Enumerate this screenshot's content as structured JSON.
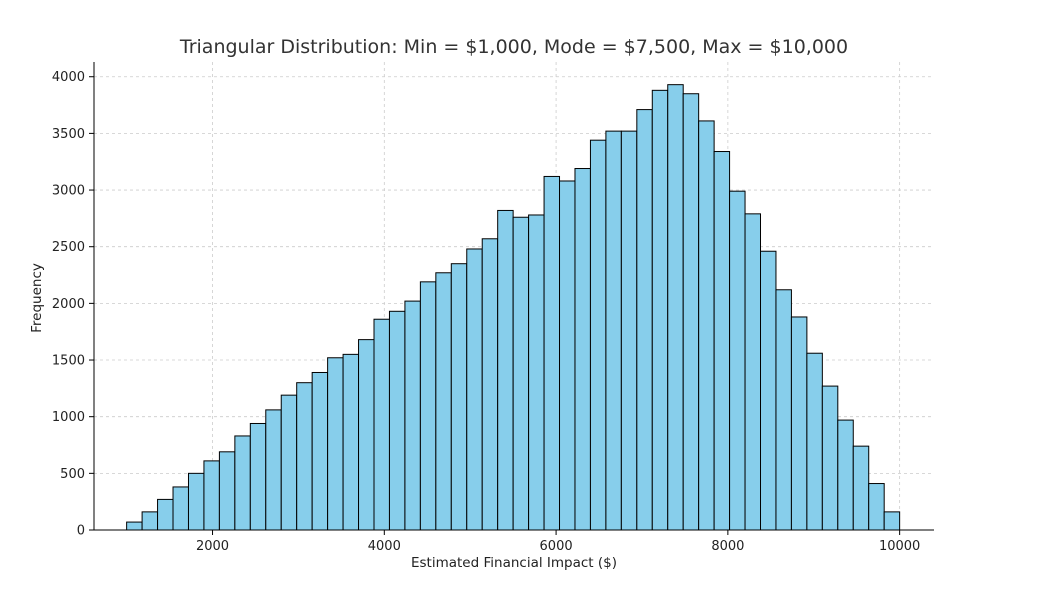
{
  "chart_data": {
    "type": "bar",
    "title": "Triangular Distribution: Min = $1,000, Mode = $7,500, Max = $10,000",
    "xlabel": "Estimated Financial Impact ($)",
    "ylabel": "Frequency",
    "xlim": [
      620,
      10400
    ],
    "ylim": [
      0,
      4130
    ],
    "xticks": [
      2000,
      4000,
      6000,
      8000,
      10000
    ],
    "yticks": [
      0,
      500,
      1000,
      1500,
      2000,
      2500,
      3000,
      3500,
      4000
    ],
    "grid": true,
    "bin_start": 1000,
    "bin_width": 180,
    "values": [
      70,
      160,
      270,
      380,
      500,
      610,
      690,
      830,
      940,
      1060,
      1190,
      1300,
      1390,
      1520,
      1550,
      1680,
      1860,
      1930,
      2020,
      2190,
      2270,
      2350,
      2480,
      2570,
      2820,
      2760,
      2780,
      3120,
      3080,
      3190,
      3440,
      3520,
      3520,
      3710,
      3880,
      3930,
      3850,
      3610,
      3340,
      2990,
      2790,
      2460,
      2120,
      1880,
      1560,
      1270,
      970,
      740,
      410,
      160
    ]
  }
}
